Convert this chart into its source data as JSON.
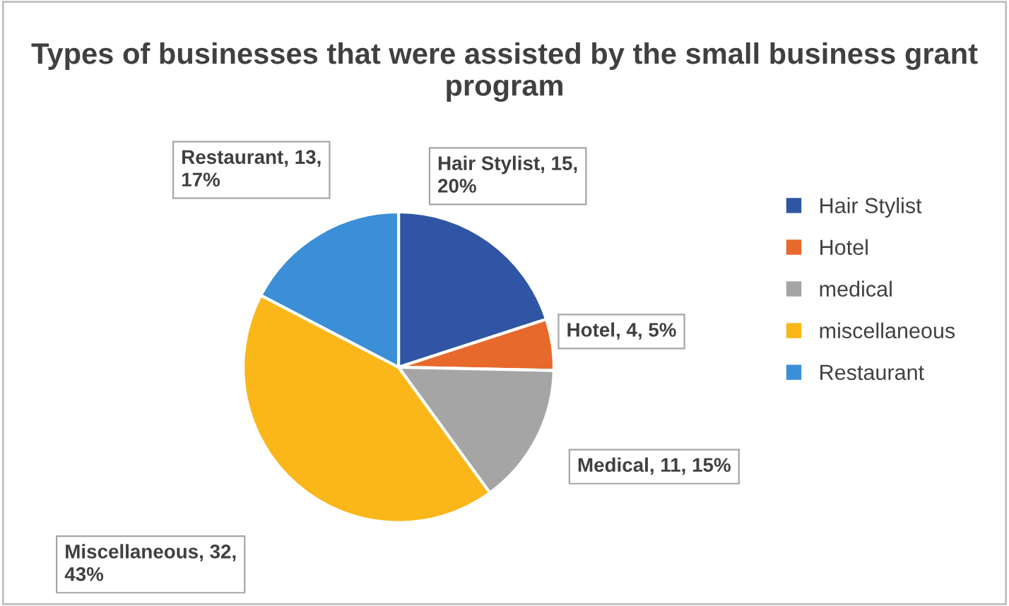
{
  "chart_data": {
    "type": "pie",
    "title": "Types of businesses that were assisted by the small business grant program",
    "categories": [
      "Hair Stylist",
      "Hotel",
      "medical",
      "miscellaneous",
      "Restaurant"
    ],
    "values": [
      15,
      4,
      11,
      32,
      13
    ],
    "colors": [
      "#2f55a4",
      "#e8692c",
      "#a5a5a5",
      "#fbb619",
      "#3a8fd6"
    ],
    "value_labels": [
      "Hair Stylist, 15, 20%",
      "Hotel, 4, 5%",
      "Medical, 11, 15%",
      "Miscellaneous, 32, 43%",
      "Restaurant, 13, 17%"
    ],
    "legend": "right"
  }
}
